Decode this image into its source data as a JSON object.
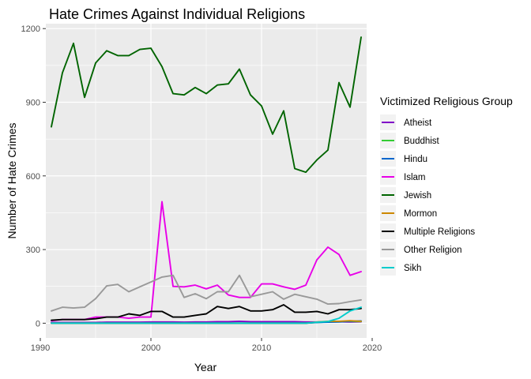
{
  "chart_data": {
    "type": "line",
    "title": "Hate Crimes Against Individual Religions",
    "xlabel": "Year",
    "ylabel": "Number of Hate Crimes",
    "xlim": [
      1990.5,
      2019.5
    ],
    "ylim": [
      -60,
      1220
    ],
    "x_ticks": [
      1990,
      2000,
      2010,
      2020
    ],
    "y_ticks": [
      0,
      300,
      600,
      900,
      1200
    ],
    "grid": true,
    "legend_title": "Victimized Religious Group",
    "legend_position": "right",
    "x": [
      1991,
      1992,
      1993,
      1994,
      1995,
      1996,
      1997,
      1998,
      1999,
      2000,
      2001,
      2002,
      2003,
      2004,
      2005,
      2006,
      2007,
      2008,
      2009,
      2010,
      2011,
      2012,
      2013,
      2014,
      2015,
      2016,
      2017,
      2018,
      2019
    ],
    "series": [
      {
        "name": "Atheist",
        "color": "#8000c8",
        "values": [
          3,
          3,
          3,
          3,
          3,
          4,
          4,
          4,
          4,
          5,
          5,
          5,
          4,
          5,
          5,
          6,
          6,
          8,
          6,
          6,
          6,
          6,
          6,
          5,
          5,
          6,
          6,
          5,
          6
        ]
      },
      {
        "name": "Buddhist",
        "color": "#33cc33",
        "values": [
          0,
          0,
          0,
          0,
          0,
          0,
          0,
          0,
          0,
          0,
          0,
          0,
          0,
          0,
          0,
          0,
          0,
          0,
          0,
          0,
          0,
          0,
          0,
          0,
          3,
          5,
          8,
          7,
          7
        ]
      },
      {
        "name": "Hindu",
        "color": "#0066cc",
        "values": [
          0,
          0,
          0,
          0,
          0,
          0,
          0,
          0,
          0,
          0,
          0,
          0,
          0,
          0,
          0,
          0,
          0,
          0,
          0,
          0,
          0,
          0,
          0,
          0,
          3,
          4,
          5,
          8,
          9
        ]
      },
      {
        "name": "Islam",
        "color": "#e800e8",
        "values": [
          10,
          15,
          15,
          15,
          25,
          25,
          25,
          20,
          25,
          25,
          495,
          150,
          148,
          155,
          140,
          155,
          115,
          105,
          105,
          160,
          160,
          148,
          138,
          155,
          258,
          310,
          280,
          195,
          210
        ]
      },
      {
        "name": "Jewish",
        "color": "#006400",
        "values": [
          800,
          1020,
          1140,
          920,
          1060,
          1110,
          1090,
          1090,
          1115,
          1120,
          1045,
          935,
          930,
          960,
          935,
          970,
          975,
          1035,
          930,
          885,
          770,
          865,
          630,
          615,
          665,
          705,
          980,
          880,
          1165
        ]
      },
      {
        "name": "Mormon",
        "color": "#cc8800",
        "values": [
          0,
          0,
          0,
          0,
          0,
          0,
          0,
          0,
          0,
          0,
          0,
          0,
          0,
          0,
          0,
          0,
          0,
          0,
          0,
          0,
          0,
          0,
          0,
          0,
          5,
          8,
          8,
          10,
          8
        ]
      },
      {
        "name": "Multiple Religions",
        "color": "#000000",
        "values": [
          12,
          15,
          15,
          15,
          18,
          25,
          25,
          38,
          32,
          48,
          48,
          25,
          25,
          32,
          38,
          68,
          60,
          68,
          50,
          50,
          55,
          75,
          45,
          45,
          48,
          38,
          55,
          55,
          60
        ]
      },
      {
        "name": "Other Religion",
        "color": "#999999",
        "values": [
          50,
          65,
          62,
          65,
          100,
          152,
          158,
          128,
          148,
          168,
          188,
          195,
          105,
          120,
          100,
          128,
          128,
          195,
          108,
          118,
          128,
          98,
          118,
          108,
          98,
          78,
          80,
          88,
          95
        ]
      },
      {
        "name": "Sikh",
        "color": "#00cccc",
        "values": [
          0,
          0,
          0,
          0,
          0,
          0,
          0,
          0,
          0,
          0,
          0,
          0,
          0,
          0,
          0,
          0,
          0,
          0,
          0,
          0,
          0,
          0,
          0,
          0,
          4,
          7,
          20,
          50,
          65
        ]
      }
    ]
  }
}
